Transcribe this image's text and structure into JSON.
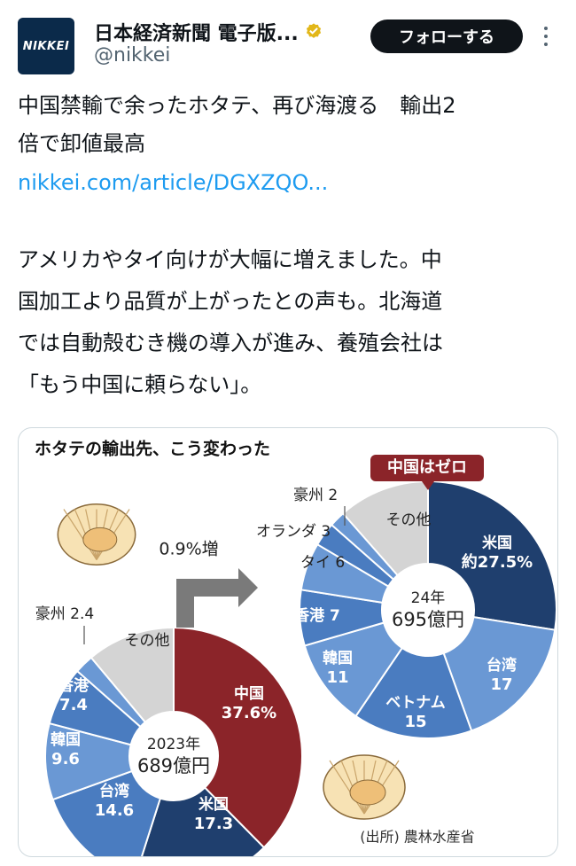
{
  "account": {
    "avatar_text": "NIKKEI",
    "display_name": "日本経済新聞 電子版...",
    "handle": "@nikkei",
    "follow_label": "フォローする"
  },
  "tweet": {
    "headline_line1": "中国禁輸で余ったホタテ、再び海渡る　輸出2",
    "headline_line2": "倍で卸値最高",
    "link": "nikkei.com/article/DGXZQO...",
    "body_line1": "アメリカやタイ向けが大幅に増えました。中",
    "body_line2": "国加工より品質が上がったとの声も。北海道",
    "body_line3": "では自動殻むき機の導入が進み、養殖会社は",
    "body_line4": "「もう中国に頼らない」。"
  },
  "colors": {
    "china": "#8b2429",
    "usa": "#1f3f6e",
    "mid": "#4a7cc0",
    "light": "#6a98d4",
    "other": "#d4d4d4"
  },
  "chart_data": [
    {
      "type": "pie",
      "title": "ホタテの輸出先、こう変わった",
      "center_label_year": "2023年",
      "center_label_value": "689億円",
      "slices": [
        {
          "name": "中国",
          "value_label": "37.6%",
          "value": 37.6
        },
        {
          "name": "米国",
          "value_label": "17.3",
          "value": 17.3
        },
        {
          "name": "台湾",
          "value_label": "14.6",
          "value": 14.6
        },
        {
          "name": "韓国",
          "value_label": "9.6",
          "value": 9.6
        },
        {
          "name": "香港",
          "value_label": "7.4",
          "value": 7.4
        },
        {
          "name": "豪州",
          "value_label": "2.4",
          "value": 2.4
        },
        {
          "name": "その他",
          "value_label": "",
          "value": 11.1
        }
      ]
    },
    {
      "type": "pie",
      "center_label_year": "24年",
      "center_label_value": "695億円",
      "callout": "中国はゼロ",
      "change_label": "0.9%増",
      "source": "(出所) 農林水産省",
      "slices": [
        {
          "name": "米国",
          "value_label": "約27.5%",
          "value": 27.5
        },
        {
          "name": "台湾",
          "value_label": "17",
          "value": 17
        },
        {
          "name": "ベトナム",
          "value_label": "15",
          "value": 15
        },
        {
          "name": "韓国",
          "value_label": "11",
          "value": 11
        },
        {
          "name": "香港",
          "value_label": "7",
          "value": 7
        },
        {
          "name": "タイ",
          "value_label": "6",
          "value": 6
        },
        {
          "name": "オランダ",
          "value_label": "3",
          "value": 3
        },
        {
          "name": "豪州",
          "value_label": "2",
          "value": 2
        },
        {
          "name": "その他",
          "value_label": "",
          "value": 11.5
        }
      ]
    }
  ]
}
